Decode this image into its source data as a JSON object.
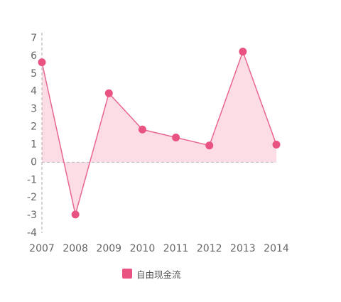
{
  "chart_data": {
    "type": "area",
    "categories": [
      "2007",
      "2008",
      "2009",
      "2010",
      "2011",
      "2012",
      "2013",
      "2014"
    ],
    "series": [
      {
        "name": "自由现金流",
        "values": [
          5.65,
          -2.95,
          3.9,
          1.85,
          1.4,
          0.95,
          6.25,
          1.0
        ]
      }
    ],
    "yticks": [
      "7",
      "6",
      "5",
      "4",
      "3",
      "2",
      "1",
      "0",
      "-1",
      "-2",
      "-3",
      "-4"
    ],
    "ylim": [
      -4,
      7
    ],
    "grid": false,
    "legend_position": "bottom",
    "colors": {
      "line": "#e8668f",
      "marker": "#e95382",
      "fill": "#fcdde5",
      "zero_line": "#bbbbbb",
      "axis": "#aaaaaa",
      "legend_swatch": "#e95382"
    }
  }
}
